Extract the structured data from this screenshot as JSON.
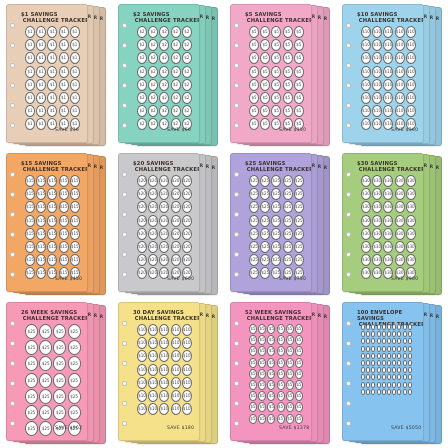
{
  "trackers": [
    {
      "id": "t1",
      "title_line1": "$1 Savings",
      "title_line2": "Challenge Tracker",
      "coin_label": "$1",
      "footer": "Save $36",
      "color": "#e8ceb6",
      "cols": 5,
      "rows": 8
    },
    {
      "id": "t2",
      "title_line1": "$2 Savings",
      "title_line2": "Challenge Tracker",
      "coin_label": "$2",
      "footer": "Save $60",
      "color": "#86d3c2",
      "cols": 5,
      "rows": 8
    },
    {
      "id": "t3",
      "title_line1": "$5 Savings",
      "title_line2": "Challenge Tracker",
      "coin_label": "$5",
      "footer": "Save $150",
      "color": "#f2a9c8",
      "cols": 5,
      "rows": 8
    },
    {
      "id": "t4",
      "title_line1": "$10 Savings",
      "title_line2": "Challenge Tracker",
      "coin_label": "$10",
      "footer": "Save $360",
      "color": "#9dd4ec",
      "cols": 5,
      "rows": 8
    },
    {
      "id": "t5",
      "title_line1": "$15 Savings",
      "title_line2": "Challenge Tracker",
      "coin_label": "$15",
      "footer": "Save $450",
      "color": "#f3a765",
      "cols": 5,
      "rows": 8
    },
    {
      "id": "t6",
      "title_line1": "$20 Savings",
      "title_line2": "Challenge Tracker",
      "coin_label": "$20",
      "footer": "Save $600",
      "color": "#c9c9cb",
      "cols": 5,
      "rows": 8
    },
    {
      "id": "t7",
      "title_line1": "$25 Savings",
      "title_line2": "Challenge Tracker",
      "coin_label": "$25",
      "footer": "Save $750",
      "color": "#b0a3db",
      "cols": 5,
      "rows": 8
    },
    {
      "id": "t8",
      "title_line1": "$30 Savings",
      "title_line2": "Challenge Tracker",
      "coin_label": "$30",
      "footer": "Save $900",
      "color": "#a6cd7d",
      "cols": 5,
      "rows": 8
    },
    {
      "id": "t9",
      "title_line1": "26 Week Savings",
      "title_line2": "Challenge Tracker",
      "coin_label": "$25",
      "footer": "Save $962",
      "color": "#f79ab7",
      "cols": 4,
      "rows": 7
    },
    {
      "id": "t10",
      "title_line1": "30 Day Savings",
      "title_line2": "Challenge Tracker",
      "coin_label": "$10",
      "footer": "Save $180",
      "color": "#f4e18a",
      "cols": 5,
      "rows": 7
    },
    {
      "id": "t11",
      "title_line1": "52 Week Savings",
      "title_line2": "Challenge Tracker",
      "coin_label": "$5",
      "footer": "Save $1378",
      "color": "#f495c0",
      "cols": 6,
      "rows": 9
    },
    {
      "id": "t12",
      "title_line1": "100 Envelope Savings",
      "title_line2": "Challenge Tracker",
      "coin_label": "",
      "footer": "Save $5050",
      "color": "#86c3ef",
      "cols": 10,
      "rows": 10
    }
  ]
}
